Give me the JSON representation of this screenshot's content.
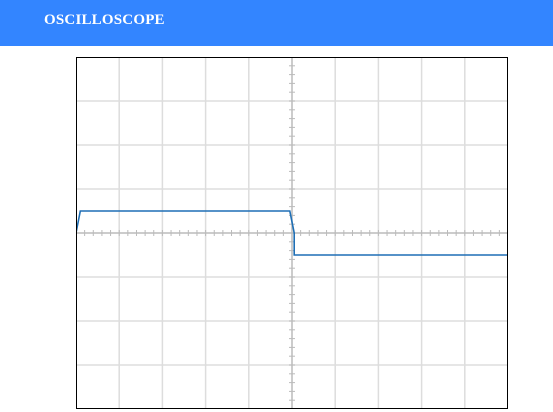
{
  "header": {
    "title": "OSCILLOSCOPE"
  },
  "scope": {
    "divisions_x": 10,
    "divisions_y": 8,
    "minor_ticks_per_division": 5,
    "trace": {
      "color": "#1f6fb5",
      "points": [
        [
          0.0,
          0.0
        ],
        [
          0.1,
          1.0
        ],
        [
          4.95,
          1.0
        ],
        [
          5.05,
          0.0
        ],
        [
          5.05,
          -1.0
        ],
        [
          10.0,
          -1.0
        ]
      ]
    },
    "colors": {
      "grid": "#dddddd",
      "axis": "#bbbbbb",
      "border": "#000000",
      "background": "#ffffff"
    }
  }
}
